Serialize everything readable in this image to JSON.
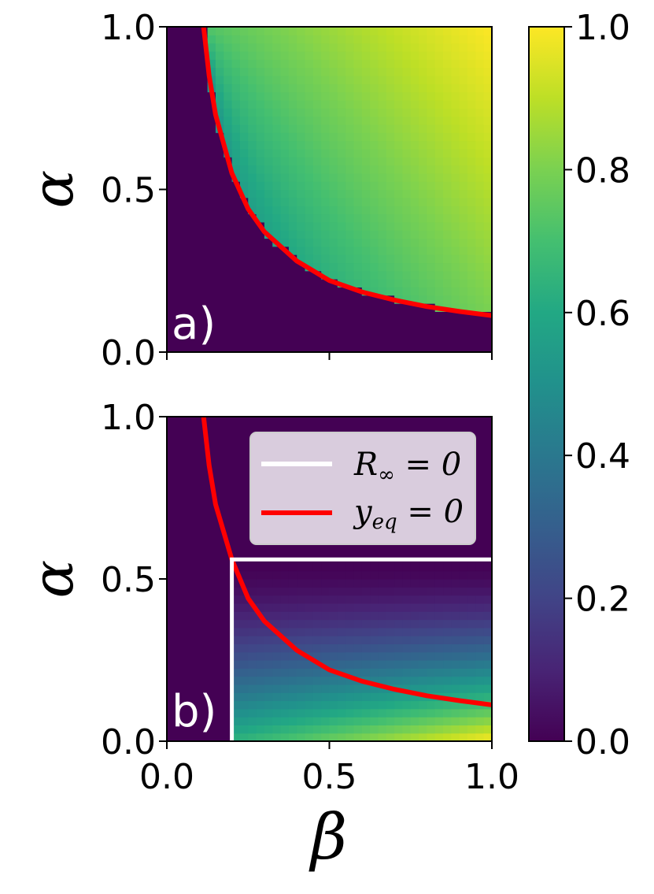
{
  "chart_data": [
    {
      "type": "heatmap",
      "panel_label": "a)",
      "xlabel": "",
      "ylabel": "α",
      "xlim": [
        0.0,
        1.0
      ],
      "ylim": [
        0.0,
        1.0
      ],
      "xticks": [],
      "yticks": [
        "0.0",
        "0.5",
        "1.0"
      ],
      "boundary_curve": {
        "color": "#ff0000",
        "points": [
          [
            0.113,
            1.0
          ],
          [
            0.13,
            0.85
          ],
          [
            0.15,
            0.73
          ],
          [
            0.2,
            0.55
          ],
          [
            0.25,
            0.44
          ],
          [
            0.3,
            0.37
          ],
          [
            0.4,
            0.28
          ],
          [
            0.5,
            0.22
          ],
          [
            0.6,
            0.185
          ],
          [
            0.7,
            0.16
          ],
          [
            0.8,
            0.14
          ],
          [
            0.9,
            0.125
          ],
          [
            1.0,
            0.112
          ]
        ]
      },
      "value_min": 0.0,
      "value_max": 1.0
    },
    {
      "type": "heatmap",
      "panel_label": "b)",
      "xlabel": "β",
      "ylabel": "α",
      "xlim": [
        0.0,
        1.0
      ],
      "ylim": [
        0.0,
        1.0
      ],
      "xticks": [
        "0.0",
        "0.5",
        "1.0"
      ],
      "yticks": [
        "0.0",
        "0.5",
        "1.0"
      ],
      "boundary_curve": {
        "color": "#ff0000",
        "points": [
          [
            0.113,
            1.0
          ],
          [
            0.13,
            0.85
          ],
          [
            0.15,
            0.73
          ],
          [
            0.2,
            0.56
          ],
          [
            0.25,
            0.44
          ],
          [
            0.3,
            0.37
          ],
          [
            0.4,
            0.28
          ],
          [
            0.5,
            0.22
          ],
          [
            0.6,
            0.185
          ],
          [
            0.7,
            0.16
          ],
          [
            0.8,
            0.14
          ],
          [
            0.9,
            0.125
          ],
          [
            1.0,
            0.112
          ]
        ]
      },
      "region_boundary": {
        "color": "#ffffff",
        "beta": 0.2,
        "alpha": 0.56
      },
      "legend": {
        "placement": "top-right",
        "entries": [
          {
            "label": "R∞ = 0",
            "color": "#ffffff"
          },
          {
            "label": "yeq = 0",
            "color": "#ff0000"
          }
        ]
      }
    }
  ],
  "colorbar": {
    "colormap": "viridis",
    "range": [
      0.0,
      1.0
    ],
    "ticks": [
      "0.0",
      "0.2",
      "0.4",
      "0.6",
      "0.8",
      "1.0"
    ]
  },
  "legend_text": {
    "r_main": "R",
    "r_sub": "∞",
    "r_rest": " = 0",
    "y_main": "y",
    "y_sub": "eq",
    "y_rest": " = 0"
  },
  "axis_symbols": {
    "alpha": "α",
    "beta": "β"
  }
}
